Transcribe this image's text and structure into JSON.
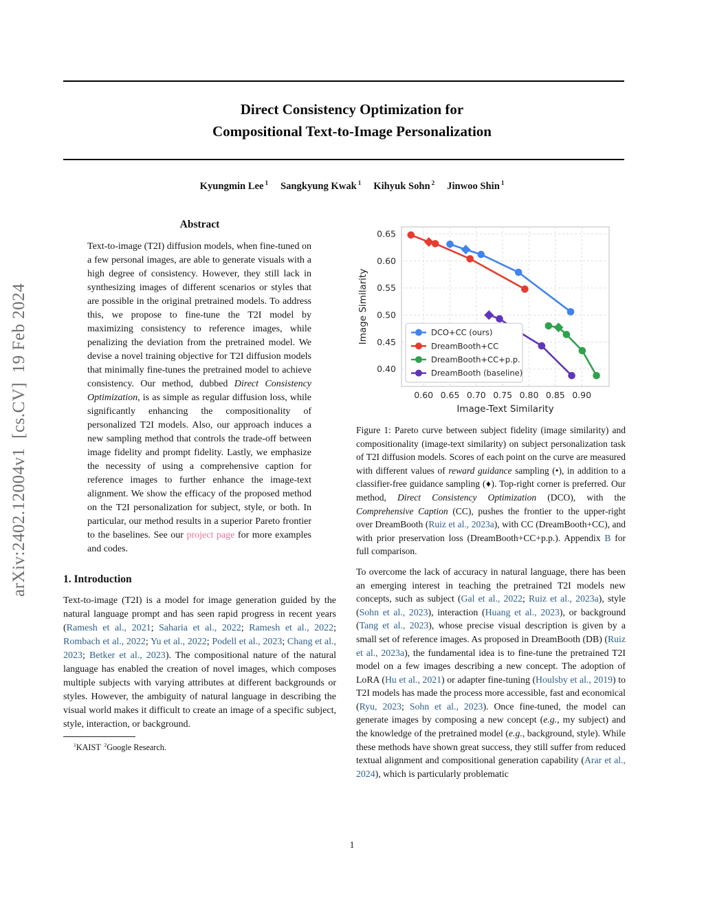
{
  "page": {
    "arxiv_sidebar": "arXiv:2402.12004v1  [cs.CV]  19 Feb 2024",
    "page_number": "1"
  },
  "colors": {
    "citation_link": "#2e5f8a",
    "project_link": "#e87392",
    "sidebar_gray": "#6f6f6f",
    "series_blue": "#4184ec",
    "series_red": "#e53c30",
    "series_green": "#30a14e",
    "series_purple": "#5f36b8"
  },
  "header": {
    "title_line1": "Direct Consistency Optimization for",
    "title_line2": "Compositional Text-to-Image Personalization",
    "authors": [
      {
        "name": "Kyungmin Lee",
        "sup": "1"
      },
      {
        "name": "Sangkyung Kwak",
        "sup": "1"
      },
      {
        "name": "Kihyuk Sohn",
        "sup": "2"
      },
      {
        "name": "Jinwoo Shin",
        "sup": "1"
      }
    ]
  },
  "abstract": {
    "heading": "Abstract",
    "body": [
      {
        "t": "Text-to-image (T2I) diffusion models, when fine-tuned on a few personal images, are able to generate visuals with a high degree of consistency. However, they still lack in synthesizing images of different scenarios or styles that are possible in the original pretrained models. To address this, we propose to fine-tune the T2I model by maximizing consistency to reference images, while penalizing the deviation from the pretrained model. We devise a novel training objective for T2I diffusion models that minimally fine-tunes the pretrained model to achieve consistency. Our method, dubbed "
      },
      {
        "t": "Direct Consistency Optimization",
        "s": "i"
      },
      {
        "t": ", is as simple as regular diffusion loss, while significantly enhancing the compositionality of personalized T2I models. Also, our approach induces a new sampling method that controls the trade-off between image fidelity and prompt fidelity. Lastly, we emphasize the necessity of using a comprehensive caption for reference images to further enhance the image-text alignment. We show the efficacy of the proposed method on the T2I personalization for subject, style, or both. In particular, our method results in a superior Pareto frontier to the baselines. See our "
      },
      {
        "t": "project page",
        "s": "pink"
      },
      {
        "t": " for more examples and codes."
      }
    ]
  },
  "introduction": {
    "heading": "1. Introduction",
    "para1": [
      {
        "t": "Text-to-image (T2I) is a model for image generation guided by the natural language prompt and has seen rapid progress in recent years ("
      },
      {
        "t": "Ramesh et al., 2021",
        "s": "cite"
      },
      {
        "t": "; "
      },
      {
        "t": "Saharia et al., 2022",
        "s": "cite"
      },
      {
        "t": "; "
      },
      {
        "t": "Ramesh et al., 2022",
        "s": "cite"
      },
      {
        "t": "; "
      },
      {
        "t": "Rombach et al., 2022",
        "s": "cite"
      },
      {
        "t": "; "
      },
      {
        "t": "Yu et al., 2022",
        "s": "cite"
      },
      {
        "t": "; "
      },
      {
        "t": "Podell et al., 2023",
        "s": "cite"
      },
      {
        "t": "; "
      },
      {
        "t": "Chang et al., 2023",
        "s": "cite"
      },
      {
        "t": "; "
      },
      {
        "t": "Betker et al., 2023",
        "s": "cite"
      },
      {
        "t": "). The compositional nature of the natural language has enabled the creation of novel images, which composes multiple subjects with varying attributes at different backgrounds or styles. However, the ambiguity of natural language in describing the visual world makes it difficult to create an image of a specific subject, style, interaction, or background."
      }
    ]
  },
  "footnote": {
    "segments": [
      {
        "t": "1",
        "s": "sup"
      },
      {
        "t": "KAIST "
      },
      {
        "t": "2",
        "s": "sup"
      },
      {
        "t": "Google Research."
      }
    ]
  },
  "figure": {
    "caption": [
      {
        "t": "Figure 1: Pareto curve between subject fidelity (image similarity) and compositionality (image-text similarity) on subject personalization task of T2I diffusion models. Scores of each point on the curve are measured with different values of "
      },
      {
        "t": "reward guidance",
        "s": "i"
      },
      {
        "t": " sampling (•), in addition to a classifier-free guidance sampling (♦). Top-right corner is preferred. Our method, "
      },
      {
        "t": "Direct Consistency Optimization",
        "s": "i"
      },
      {
        "t": " (DCO), with the "
      },
      {
        "t": "Comprehensive Caption",
        "s": "i"
      },
      {
        "t": " (CC), pushes the frontier to the upper-right over DreamBooth ("
      },
      {
        "t": "Ruiz et al., 2023a",
        "s": "cite"
      },
      {
        "t": "), with CC (DreamBooth+CC), and with prior preservation loss (DreamBooth+CC+p.p.). Appendix "
      },
      {
        "t": "B",
        "s": "cite"
      },
      {
        "t": " for full comparison."
      }
    ]
  },
  "right_column": {
    "para1": [
      {
        "t": "To overcome the lack of accuracy in natural language, there has been an emerging interest in teaching the pretrained T2I models new concepts, such as subject ("
      },
      {
        "t": "Gal et al., 2022",
        "s": "cite"
      },
      {
        "t": "; "
      },
      {
        "t": "Ruiz et al., 2023a",
        "s": "cite"
      },
      {
        "t": "), style ("
      },
      {
        "t": "Sohn et al., 2023",
        "s": "cite"
      },
      {
        "t": "), interaction ("
      },
      {
        "t": "Huang et al., 2023",
        "s": "cite"
      },
      {
        "t": "), or background ("
      },
      {
        "t": "Tang et al., 2023",
        "s": "cite"
      },
      {
        "t": "), whose precise visual description is given by a small set of reference images. As proposed in DreamBooth (DB) ("
      },
      {
        "t": "Ruiz et al., 2023a",
        "s": "cite"
      },
      {
        "t": "), the fundamental idea is to fine-tune the pretrained T2I model on a few images describing a new concept. The adoption of LoRA ("
      },
      {
        "t": "Hu et al., 2021",
        "s": "cite"
      },
      {
        "t": ") or adapter fine-tuning ("
      },
      {
        "t": "Houlsby et al., 2019",
        "s": "cite"
      },
      {
        "t": ") to T2I models has made the process more accessible, fast and economical ("
      },
      {
        "t": "Ryu, 2023",
        "s": "cite"
      },
      {
        "t": "; "
      },
      {
        "t": "Sohn et al., 2023",
        "s": "cite"
      },
      {
        "t": "). Once fine-tuned, the model can generate images by composing a new concept ("
      },
      {
        "t": "e.g.",
        "s": "i"
      },
      {
        "t": ", my subject) and the knowledge of the pretrained model ("
      },
      {
        "t": "e.g.",
        "s": "i"
      },
      {
        "t": ", background, style). While these methods have shown great success, they still suffer from reduced textual alignment and compositional generation capability ("
      },
      {
        "t": "Arar et al., 2024",
        "s": "cite"
      },
      {
        "t": "), which is particularly problematic"
      }
    ]
  },
  "chart_data": {
    "type": "line",
    "title": "",
    "xlabel": "Image-Text Similarity",
    "ylabel": "Image Similarity",
    "xlim": [
      0.558,
      0.952
    ],
    "ylim": [
      0.368,
      0.663
    ],
    "xticks": [
      0.6,
      0.65,
      0.7,
      0.75,
      0.8,
      0.85,
      0.9
    ],
    "yticks": [
      0.4,
      0.45,
      0.5,
      0.55,
      0.6,
      0.65
    ],
    "grid": true,
    "legend_position": "lower left",
    "marker_note": "circle = reward guidance sampling point, diamond = classifier-free guidance sampling point",
    "series": [
      {
        "name": "DCO+CC (ours)",
        "color": "#4184ec",
        "points": [
          [
            0.65,
            0.631,
            "c"
          ],
          [
            0.68,
            0.621,
            "d"
          ],
          [
            0.709,
            0.612,
            "c"
          ],
          [
            0.78,
            0.579,
            "c"
          ],
          [
            0.879,
            0.506,
            "c"
          ]
        ]
      },
      {
        "name": "DreamBooth+CC",
        "color": "#e53c30",
        "points": [
          [
            0.576,
            0.648,
            "c"
          ],
          [
            0.61,
            0.635,
            "d"
          ],
          [
            0.622,
            0.632,
            "c"
          ],
          [
            0.688,
            0.604,
            "c"
          ],
          [
            0.792,
            0.548,
            "c"
          ]
        ]
      },
      {
        "name": "DreamBooth+CC+p.p.",
        "color": "#30a14e",
        "points": [
          [
            0.837,
            0.48,
            "c"
          ],
          [
            0.856,
            0.477,
            "d"
          ],
          [
            0.871,
            0.464,
            "c"
          ],
          [
            0.901,
            0.434,
            "c"
          ],
          [
            0.928,
            0.388,
            "c"
          ]
        ]
      },
      {
        "name": "DreamBooth (baseline)",
        "color": "#5f36b8",
        "points": [
          [
            0.724,
            0.5,
            "d"
          ],
          [
            0.744,
            0.493,
            "c"
          ],
          [
            0.779,
            0.47,
            "c"
          ],
          [
            0.824,
            0.443,
            "c"
          ],
          [
            0.881,
            0.388,
            "c"
          ]
        ]
      }
    ]
  }
}
